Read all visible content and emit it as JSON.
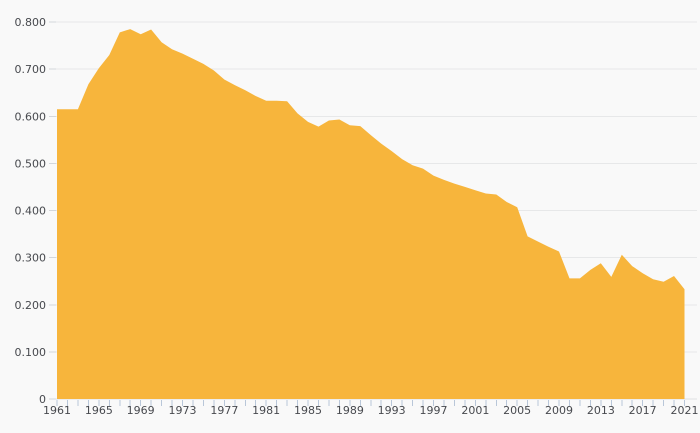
{
  "colors": {
    "background": "#f9f9f9",
    "area_fill": "#f7b53c",
    "gridline": "#e7e8e9",
    "x_tick": "#b9c7d9",
    "label_text": "#47494e"
  },
  "chart_data": {
    "type": "area",
    "title": "",
    "xlabel": "",
    "ylabel": "",
    "legend": "none",
    "grid": true,
    "ylim": [
      0,
      0.8
    ],
    "ytick_step": 0.1,
    "ytick_labels": [
      "0",
      "0.100",
      "0.200",
      "0.300",
      "0.400",
      "0.500",
      "0.600",
      "0.700",
      "0.800"
    ],
    "xtick_labels": [
      "1961",
      "1965",
      "1969",
      "1973",
      "1977",
      "1981",
      "1985",
      "1989",
      "1993",
      "1997",
      "2001",
      "2005",
      "2009",
      "2013",
      "2017",
      "2021"
    ],
    "x_minor_tick_every": 1,
    "x": [
      1961,
      1962,
      1963,
      1964,
      1965,
      1966,
      1967,
      1968,
      1969,
      1970,
      1971,
      1972,
      1973,
      1974,
      1975,
      1976,
      1977,
      1978,
      1979,
      1980,
      1981,
      1982,
      1983,
      1984,
      1985,
      1986,
      1987,
      1988,
      1989,
      1990,
      1991,
      1992,
      1993,
      1994,
      1995,
      1996,
      1997,
      1998,
      1999,
      2000,
      2001,
      2002,
      2003,
      2004,
      2005,
      2006,
      2007,
      2008,
      2009,
      2010,
      2011,
      2012,
      2013,
      2014,
      2015,
      2016,
      2017,
      2018,
      2019,
      2020,
      2021
    ],
    "values": [
      0.615,
      0.615,
      0.615,
      0.668,
      0.702,
      0.73,
      0.778,
      0.785,
      0.774,
      0.784,
      0.757,
      0.742,
      0.733,
      0.722,
      0.711,
      0.697,
      0.678,
      0.666,
      0.655,
      0.643,
      0.633,
      0.633,
      0.632,
      0.606,
      0.588,
      0.578,
      0.591,
      0.593,
      0.581,
      0.579,
      0.56,
      0.542,
      0.526,
      0.509,
      0.496,
      0.489,
      0.474,
      0.465,
      0.457,
      0.45,
      0.443,
      0.436,
      0.434,
      0.418,
      0.407,
      0.345,
      0.334,
      0.323,
      0.313,
      0.256,
      0.256,
      0.274,
      0.288,
      0.259,
      0.306,
      0.282,
      0.267,
      0.254,
      0.249,
      0.261,
      0.233
    ]
  }
}
